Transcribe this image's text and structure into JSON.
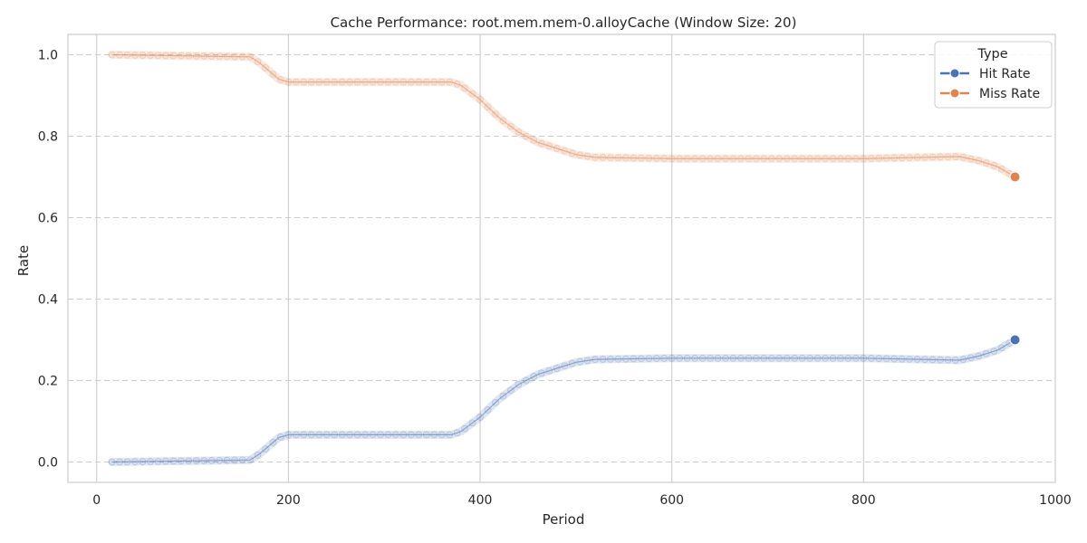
{
  "chart_data": {
    "type": "line",
    "title": "Cache Performance: root.mem.mem-0.alloyCache (Window Size: 20)",
    "xlabel": "Period",
    "ylabel": "Rate",
    "xlim": [
      -30,
      1000
    ],
    "ylim": [
      -0.05,
      1.05
    ],
    "xticks": [
      0,
      200,
      400,
      600,
      800,
      1000
    ],
    "yticks": [
      0.0,
      0.2,
      0.4,
      0.6,
      0.8,
      1.0
    ],
    "xtick_labels": [
      "0",
      "200",
      "400",
      "600",
      "800",
      "1000"
    ],
    "ytick_labels": [
      "0.0",
      "0.2",
      "0.4",
      "0.6",
      "0.8",
      "1.0"
    ],
    "grid": {
      "x": "solid",
      "y": "dashed"
    },
    "legend": {
      "title": "Type",
      "position": "top-right"
    },
    "series": [
      {
        "name": "Hit Rate",
        "color": "#4c72b0",
        "x": [
          16,
          160,
          170,
          180,
          190,
          200,
          370,
          380,
          400,
          420,
          440,
          460,
          480,
          500,
          520,
          600,
          700,
          800,
          900,
          920,
          940,
          958
        ],
        "y": [
          0.0,
          0.005,
          0.02,
          0.04,
          0.06,
          0.067,
          0.067,
          0.075,
          0.11,
          0.155,
          0.19,
          0.215,
          0.23,
          0.245,
          0.252,
          0.255,
          0.255,
          0.255,
          0.25,
          0.26,
          0.275,
          0.3
        ],
        "marker_last": true
      },
      {
        "name": "Miss Rate",
        "color": "#dd8452",
        "x": [
          16,
          160,
          170,
          180,
          190,
          200,
          370,
          380,
          400,
          420,
          440,
          460,
          480,
          500,
          520,
          600,
          700,
          800,
          900,
          920,
          940,
          958
        ],
        "y": [
          1.0,
          0.995,
          0.98,
          0.96,
          0.94,
          0.933,
          0.933,
          0.925,
          0.89,
          0.845,
          0.81,
          0.785,
          0.77,
          0.755,
          0.748,
          0.745,
          0.745,
          0.745,
          0.75,
          0.74,
          0.725,
          0.7
        ],
        "marker_last": true
      }
    ]
  }
}
